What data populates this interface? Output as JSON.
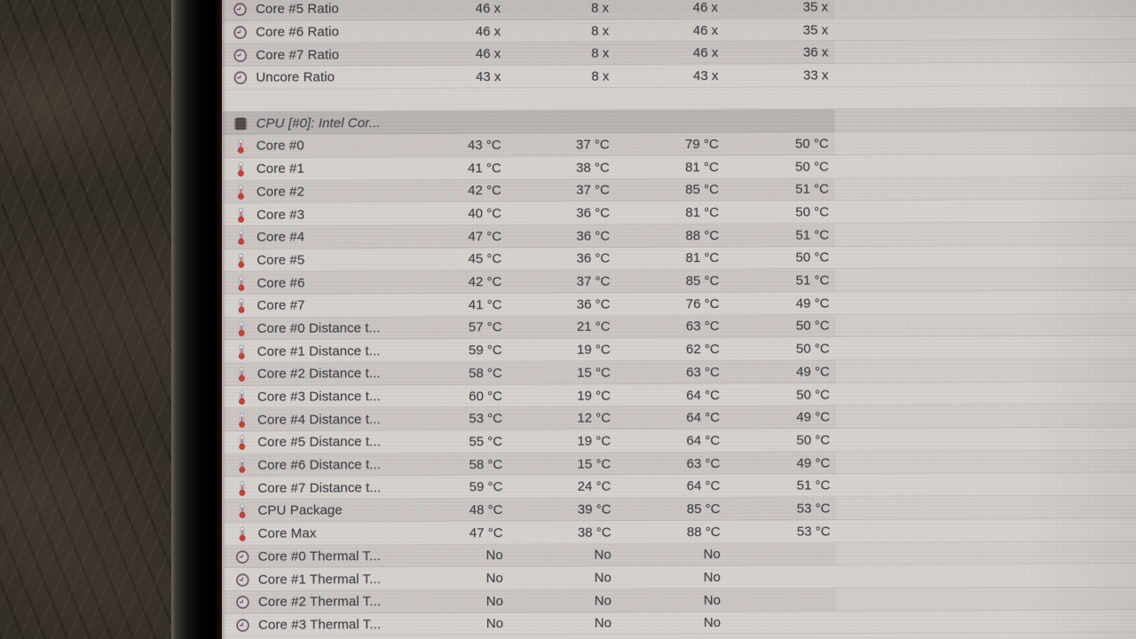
{
  "colors": {
    "screen_bg": "#d7d3ce",
    "stripe": "#ccc5c2",
    "header_band": "#b8b2b0",
    "text": "#34323a",
    "wall_brown": "#332d27",
    "thermo_red": "#c93527",
    "clock_outline": "#6d4f60",
    "chip_dark": "#494239"
  },
  "rows": [
    {
      "type": "sensor",
      "icon": "clock",
      "label": "Core #5 Ratio",
      "values": [
        "46 x",
        "8 x",
        "46 x",
        "35 x"
      ]
    },
    {
      "type": "sensor",
      "icon": "clock",
      "label": "Core #6 Ratio",
      "values": [
        "46 x",
        "8 x",
        "46 x",
        "35 x"
      ]
    },
    {
      "type": "sensor",
      "icon": "clock",
      "label": "Core #7 Ratio",
      "values": [
        "46 x",
        "8 x",
        "46 x",
        "36 x"
      ]
    },
    {
      "type": "sensor",
      "icon": "clock",
      "label": "Uncore Ratio",
      "values": [
        "43 x",
        "8 x",
        "43 x",
        "33 x"
      ]
    },
    {
      "type": "spacer"
    },
    {
      "type": "header",
      "icon": "chip",
      "label": "CPU [#0]: Intel Cor..."
    },
    {
      "type": "sensor",
      "icon": "thermometer",
      "label": "Core #0",
      "values": [
        "43 °C",
        "37 °C",
        "79 °C",
        "50 °C"
      ]
    },
    {
      "type": "sensor",
      "icon": "thermometer",
      "label": "Core #1",
      "values": [
        "41 °C",
        "38 °C",
        "81 °C",
        "50 °C"
      ]
    },
    {
      "type": "sensor",
      "icon": "thermometer",
      "label": "Core #2",
      "values": [
        "42 °C",
        "37 °C",
        "85 °C",
        "51 °C"
      ]
    },
    {
      "type": "sensor",
      "icon": "thermometer",
      "label": "Core #3",
      "values": [
        "40 °C",
        "36 °C",
        "81 °C",
        "50 °C"
      ]
    },
    {
      "type": "sensor",
      "icon": "thermometer",
      "label": "Core #4",
      "values": [
        "47 °C",
        "36 °C",
        "88 °C",
        "51 °C"
      ]
    },
    {
      "type": "sensor",
      "icon": "thermometer",
      "label": "Core #5",
      "values": [
        "45 °C",
        "36 °C",
        "81 °C",
        "50 °C"
      ]
    },
    {
      "type": "sensor",
      "icon": "thermometer",
      "label": "Core #6",
      "values": [
        "42 °C",
        "37 °C",
        "85 °C",
        "51 °C"
      ]
    },
    {
      "type": "sensor",
      "icon": "thermometer",
      "label": "Core #7",
      "values": [
        "41 °C",
        "36 °C",
        "76 °C",
        "49 °C"
      ]
    },
    {
      "type": "sensor",
      "icon": "thermometer",
      "label": "Core #0 Distance t...",
      "values": [
        "57 °C",
        "21 °C",
        "63 °C",
        "50 °C"
      ]
    },
    {
      "type": "sensor",
      "icon": "thermometer",
      "label": "Core #1 Distance t...",
      "values": [
        "59 °C",
        "19 °C",
        "62 °C",
        "50 °C"
      ]
    },
    {
      "type": "sensor",
      "icon": "thermometer",
      "label": "Core #2 Distance t...",
      "values": [
        "58 °C",
        "15 °C",
        "63 °C",
        "49 °C"
      ]
    },
    {
      "type": "sensor",
      "icon": "thermometer",
      "label": "Core #3 Distance t...",
      "values": [
        "60 °C",
        "19 °C",
        "64 °C",
        "50 °C"
      ]
    },
    {
      "type": "sensor",
      "icon": "thermometer",
      "label": "Core #4 Distance t...",
      "values": [
        "53 °C",
        "12 °C",
        "64 °C",
        "49 °C"
      ]
    },
    {
      "type": "sensor",
      "icon": "thermometer",
      "label": "Core #5 Distance t...",
      "values": [
        "55 °C",
        "19 °C",
        "64 °C",
        "50 °C"
      ]
    },
    {
      "type": "sensor",
      "icon": "thermometer",
      "label": "Core #6 Distance t...",
      "values": [
        "58 °C",
        "15 °C",
        "63 °C",
        "49 °C"
      ]
    },
    {
      "type": "sensor",
      "icon": "thermometer",
      "label": "Core #7 Distance t...",
      "values": [
        "59 °C",
        "24 °C",
        "64 °C",
        "51 °C"
      ]
    },
    {
      "type": "sensor",
      "icon": "thermometer",
      "label": "CPU Package",
      "values": [
        "48 °C",
        "39 °C",
        "85 °C",
        "53 °C"
      ]
    },
    {
      "type": "sensor",
      "icon": "thermometer",
      "label": "Core Max",
      "values": [
        "47 °C",
        "38 °C",
        "88 °C",
        "53 °C"
      ]
    },
    {
      "type": "sensor",
      "icon": "clock",
      "label": "Core #0 Thermal T...",
      "values": [
        "No",
        "No",
        "No"
      ]
    },
    {
      "type": "sensor",
      "icon": "clock",
      "label": "Core #1 Thermal T...",
      "values": [
        "No",
        "No",
        "No"
      ]
    },
    {
      "type": "sensor",
      "icon": "clock",
      "label": "Core #2 Thermal T...",
      "values": [
        "No",
        "No",
        "No"
      ]
    },
    {
      "type": "sensor",
      "icon": "clock",
      "label": "Core #3 Thermal T...",
      "values": [
        "No",
        "No",
        "No"
      ]
    }
  ]
}
